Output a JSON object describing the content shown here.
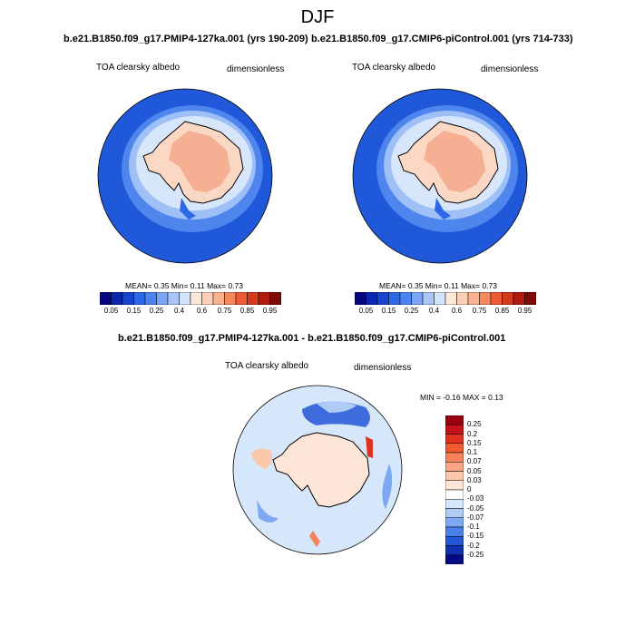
{
  "figure": {
    "season": "DJF"
  },
  "panels": [
    {
      "title": "b.e21.B1850.f09_g17.PMIP4-127ka.001 (yrs 190-209)",
      "variable": "TOA clearsky albedo",
      "units": "dimensionless",
      "stats_line": "MEAN=  0.35  Min=  0.11  Max=  0.73",
      "colorbar": {
        "ticks": [
          "0.05",
          "0.15",
          "0.25",
          "0.4",
          "0.6",
          "0.75",
          "0.85",
          "0.95"
        ],
        "colors": [
          "#05077f",
          "#0b26b0",
          "#1845d0",
          "#2d68e8",
          "#4a84f0",
          "#7aa5f5",
          "#a9c6f8",
          "#d4e4fb",
          "#fde8d8",
          "#fcd0b6",
          "#f9b28d",
          "#f5875c",
          "#ed5a33",
          "#d53a1c",
          "#b31a0e",
          "#7e0b05"
        ]
      }
    },
    {
      "title": "b.e21.B1850.f09_g17.CMIP6-piControl.001 (yrs 714-733)",
      "variable": "TOA clearsky albedo",
      "units": "dimensionless",
      "stats_line": "MEAN=  0.35  Min=  0.11  Max=  0.73",
      "colorbar": {
        "ticks": [
          "0.05",
          "0.15",
          "0.25",
          "0.4",
          "0.6",
          "0.75",
          "0.85",
          "0.95"
        ],
        "colors": [
          "#05077f",
          "#0b26b0",
          "#1845d0",
          "#2d68e8",
          "#4a84f0",
          "#7aa5f5",
          "#a9c6f8",
          "#d4e4fb",
          "#fde8d8",
          "#fcd0b6",
          "#f9b28d",
          "#f5875c",
          "#ed5a33",
          "#d53a1c",
          "#b31a0e",
          "#7e0b05"
        ]
      }
    },
    {
      "title": "b.e21.B1850.f09_g17.PMIP4-127ka.001 - b.e21.B1850.f09_g17.CMIP6-piControl.001",
      "variable": "TOA clearsky albedo",
      "units": "dimensionless",
      "stats_line": "MIN =  -0.16 MAX =   0.13",
      "colorbar": {
        "ticks": [
          "0.25",
          "0.2",
          "0.15",
          "0.1",
          "0.07",
          "0.05",
          "0.03",
          "0",
          "-0.03",
          "-0.05",
          "-0.07",
          "-0.1",
          "-0.15",
          "-0.2",
          "-0.25"
        ],
        "colors": [
          "#99000d",
          "#c8101c",
          "#e0301f",
          "#f05a30",
          "#f5825a",
          "#f8a683",
          "#fbc7ab",
          "#fde6d8",
          "#ffffff",
          "#d6e6fb",
          "#aecbf6",
          "#7ea8f1",
          "#4b7fe8",
          "#2456d6",
          "#0f30b0",
          "#050a80"
        ]
      }
    }
  ],
  "map_colors": {
    "ocean_open": "#1f59d9",
    "ocean_ice_edge": "#4e86ee",
    "sea_ice_low": "#9ec0f6",
    "sea_ice_high": "#d8e6fb",
    "land_low": "#fbd8c3",
    "land_high": "#f5b094",
    "diff_background": "#d6e6fb",
    "diff_land": "#fde6d8",
    "diff_neg_strong": "#2456d6",
    "diff_pos_strong": "#e0301f"
  }
}
